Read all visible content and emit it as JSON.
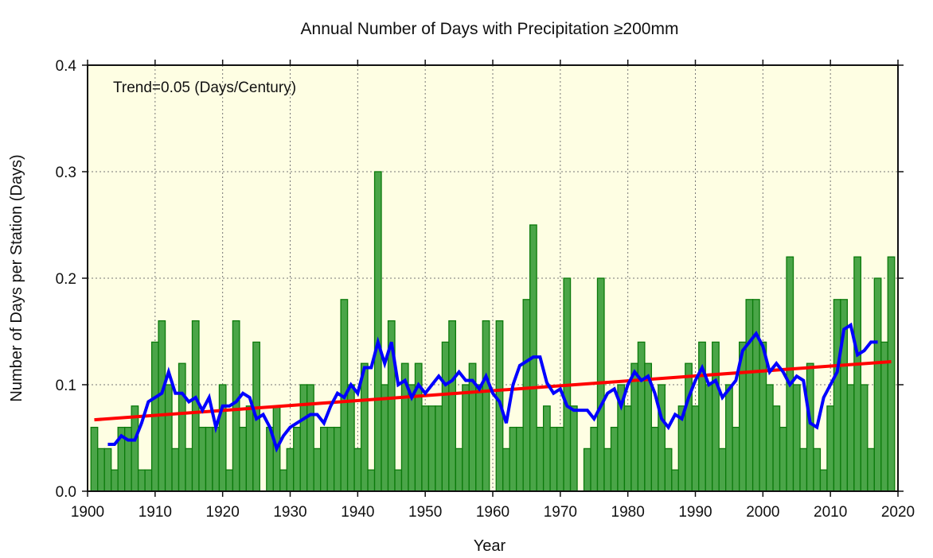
{
  "chart_data": {
    "type": "bar",
    "title": "Annual Number of Days with Precipitation ≥200mm",
    "xlabel": "Year",
    "ylabel": "Number of Days per Station (Days)",
    "annotation": "Trend=0.05 (Days/Century)",
    "xlim": [
      1900,
      2020
    ],
    "ylim": [
      0,
      0.4
    ],
    "x_ticks": [
      "1900",
      "1910",
      "1920",
      "1930",
      "1940",
      "1950",
      "1960",
      "1970",
      "1980",
      "1990",
      "2000",
      "2010",
      "2020"
    ],
    "y_ticks": [
      "0.0",
      "0.1",
      "0.2",
      "0.3",
      "0.4"
    ],
    "grid": true,
    "colors": {
      "background": "#fefee3",
      "bar_fill": "#4aa548",
      "bar_edge": "#0b7a0b",
      "moving_average": "#0000ff",
      "trend": "#ff0000"
    },
    "years": [
      1901,
      1902,
      1903,
      1904,
      1905,
      1906,
      1907,
      1908,
      1909,
      1910,
      1911,
      1912,
      1913,
      1914,
      1915,
      1916,
      1917,
      1918,
      1919,
      1920,
      1921,
      1922,
      1923,
      1924,
      1925,
      1926,
      1927,
      1928,
      1929,
      1930,
      1931,
      1932,
      1933,
      1934,
      1935,
      1936,
      1937,
      1938,
      1939,
      1940,
      1941,
      1942,
      1943,
      1944,
      1945,
      1946,
      1947,
      1948,
      1949,
      1950,
      1951,
      1952,
      1953,
      1954,
      1955,
      1956,
      1957,
      1958,
      1959,
      1960,
      1961,
      1962,
      1963,
      1964,
      1965,
      1966,
      1967,
      1968,
      1969,
      1970,
      1971,
      1972,
      1973,
      1974,
      1975,
      1976,
      1977,
      1978,
      1979,
      1980,
      1981,
      1982,
      1983,
      1984,
      1985,
      1986,
      1987,
      1988,
      1989,
      1990,
      1991,
      1992,
      1993,
      1994,
      1995,
      1996,
      1997,
      1998,
      1999,
      2000,
      2001,
      2002,
      2003,
      2004,
      2005,
      2006,
      2007,
      2008,
      2009,
      2010,
      2011,
      2012,
      2013,
      2014,
      2015,
      2016,
      2017,
      2018,
      2019
    ],
    "values": [
      0.06,
      0.04,
      0.04,
      0.02,
      0.06,
      0.06,
      0.08,
      0.02,
      0.02,
      0.14,
      0.16,
      0.1,
      0.04,
      0.12,
      0.04,
      0.16,
      0.06,
      0.06,
      0.06,
      0.1,
      0.02,
      0.16,
      0.06,
      0.08,
      0.14,
      0,
      0.06,
      0.08,
      0.02,
      0.04,
      0.06,
      0.1,
      0.1,
      0.04,
      0.06,
      0.06,
      0.06,
      0.18,
      0.1,
      0.04,
      0.12,
      0.02,
      0.3,
      0.1,
      0.16,
      0.02,
      0.12,
      0.1,
      0.12,
      0.08,
      0.08,
      0.08,
      0.14,
      0.16,
      0.04,
      0.1,
      0.12,
      0.1,
      0.16,
      0,
      0.16,
      0.04,
      0.06,
      0.06,
      0.18,
      0.25,
      0.06,
      0.08,
      0.06,
      0.06,
      0.2,
      0.08,
      0,
      0.04,
      0.06,
      0.2,
      0.04,
      0.06,
      0.1,
      0.08,
      0.12,
      0.14,
      0.12,
      0.06,
      0.1,
      0.04,
      0.02,
      0.08,
      0.12,
      0.08,
      0.14,
      0.1,
      0.14,
      0.04,
      0.1,
      0.06,
      0.14,
      0.18,
      0.18,
      0.14,
      0.1,
      0.08,
      0.06,
      0.22,
      0.1,
      0.04,
      0.12,
      0.04,
      0.02,
      0.08,
      0.18,
      0.18,
      0.1,
      0.22,
      0.1,
      0.04,
      0.2,
      0.14,
      0.22
    ],
    "moving_average_window": 5,
    "trend_per_century": 0.05
  }
}
